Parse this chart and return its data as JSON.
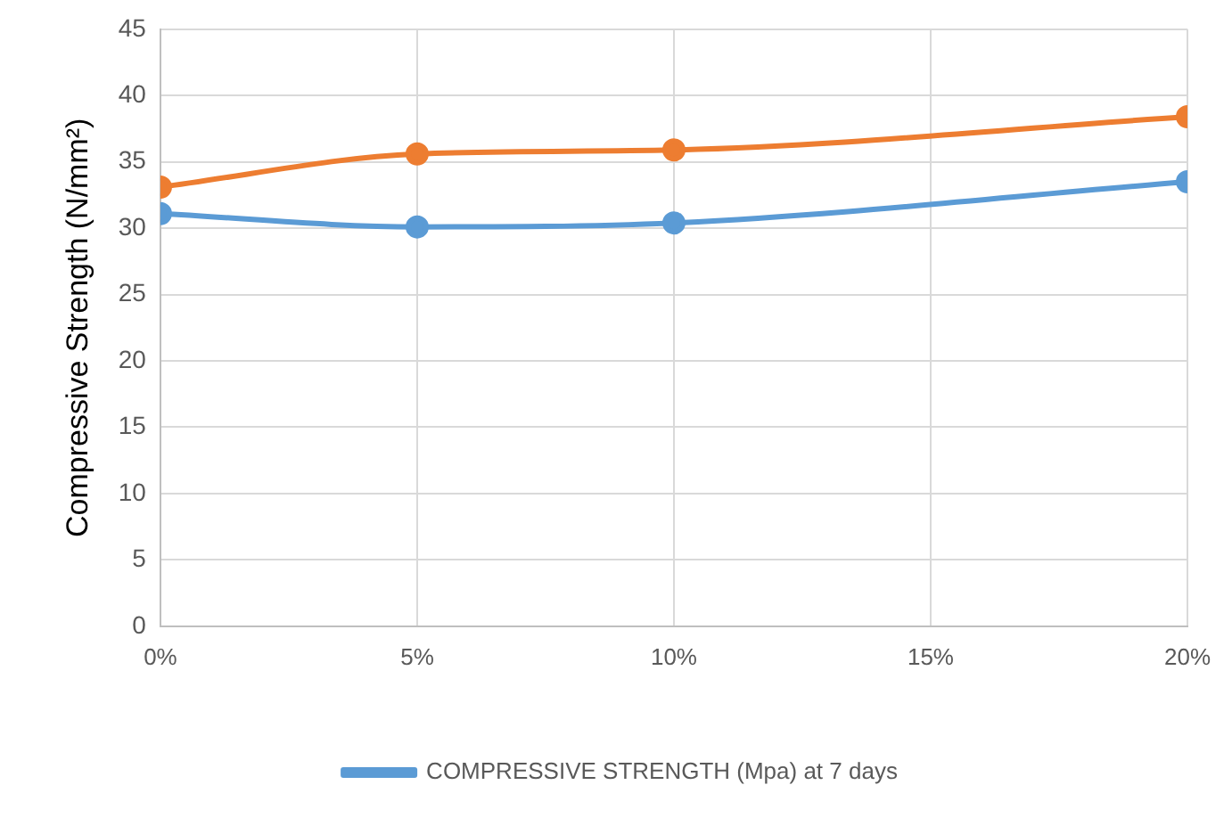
{
  "chart_data": {
    "type": "line",
    "ylabel": "Compressive Strength (N/mm²)",
    "x": [
      0,
      5,
      10,
      20
    ],
    "series": [
      {
        "name": "COMPRESSIVE STRENGTH (Mpa) at 7 days",
        "color": "#5b9bd5",
        "values": [
          31.1,
          30.1,
          30.4,
          33.5
        ]
      },
      {
        "color": "#ed7d31",
        "values": [
          33.1,
          35.6,
          35.9,
          38.4
        ]
      }
    ],
    "xlim": [
      0,
      20
    ],
    "xticks": [
      {
        "value": 0,
        "label": "0%"
      },
      {
        "value": 5,
        "label": "5%"
      },
      {
        "value": 10,
        "label": "10%"
      },
      {
        "value": 15,
        "label": "15%"
      },
      {
        "value": 20,
        "label": "20%"
      }
    ],
    "ylim": [
      0,
      45
    ],
    "yticks": [
      0,
      5,
      10,
      15,
      20,
      25,
      30,
      35,
      40,
      45
    ],
    "grid": true,
    "legend": "bottom",
    "marker": "circle",
    "line_style": "solid"
  }
}
